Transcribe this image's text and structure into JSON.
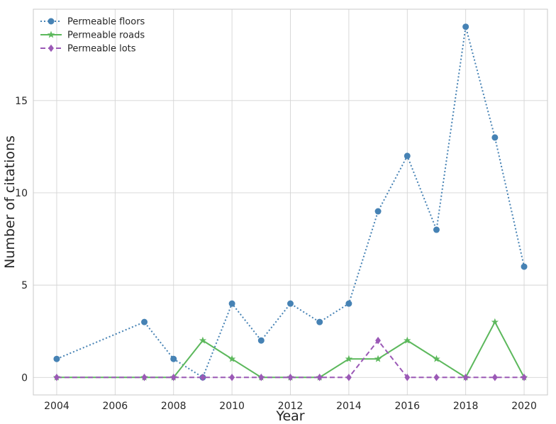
{
  "chart_data": {
    "type": "line",
    "title": "",
    "xlabel": "Year",
    "ylabel": "Number of citations",
    "xlim": [
      2003.2,
      2020.8
    ],
    "ylim": [
      -0.95,
      19.95
    ],
    "xticks": [
      2004,
      2006,
      2008,
      2010,
      2012,
      2014,
      2016,
      2018,
      2020
    ],
    "yticks": [
      0,
      5,
      10,
      15
    ],
    "grid": true,
    "legend_position": "top-left",
    "series": [
      {
        "name": "Permeable floors",
        "color": "#4682b4",
        "line_style": "dotted",
        "marker": "circle",
        "x": [
          2004,
          2007,
          2008,
          2009,
          2010,
          2011,
          2012,
          2013,
          2014,
          2015,
          2016,
          2017,
          2018,
          2019,
          2020
        ],
        "y": [
          1,
          3,
          1,
          0,
          4,
          2,
          4,
          3,
          4,
          9,
          12,
          8,
          19,
          13,
          6
        ]
      },
      {
        "name": "Permeable roads",
        "color": "#5cb85c",
        "line_style": "solid",
        "marker": "star",
        "x": [
          2004,
          2007,
          2008,
          2009,
          2010,
          2011,
          2012,
          2013,
          2014,
          2015,
          2016,
          2017,
          2018,
          2019,
          2020
        ],
        "y": [
          0,
          0,
          0,
          2,
          1,
          0,
          0,
          0,
          1,
          1,
          2,
          1,
          0,
          3,
          0
        ]
      },
      {
        "name": "Permeable lots",
        "color": "#9b59b6",
        "line_style": "dashed",
        "marker": "diamond",
        "x": [
          2004,
          2007,
          2008,
          2009,
          2010,
          2011,
          2012,
          2013,
          2014,
          2015,
          2016,
          2017,
          2018,
          2019,
          2020
        ],
        "y": [
          0,
          0,
          0,
          0,
          0,
          0,
          0,
          0,
          0,
          2,
          0,
          0,
          0,
          0,
          0
        ]
      }
    ]
  }
}
